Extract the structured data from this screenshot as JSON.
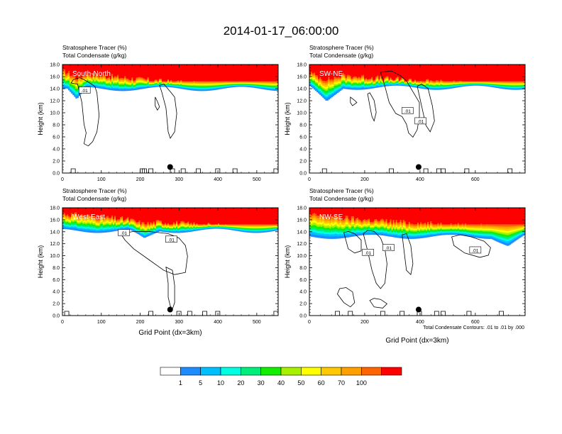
{
  "figure": {
    "title": "2014-01-17_06:00:00",
    "footnote": "Total Condensate Contours: .01 to .01 by .000"
  },
  "colors": {
    "tracer_bins": [
      "#ffffff",
      "#1e8cff",
      "#00bfff",
      "#00ffe0",
      "#00ee7a",
      "#11ee00",
      "#a6f000",
      "#ffff00",
      "#ffc800",
      "#ffa000",
      "#ff6400",
      "#ff0000"
    ],
    "contour": "#000000",
    "axis": "#000000"
  },
  "chart_data": [
    {
      "type": "heatmap",
      "panel": "South-North",
      "variable_labels": [
        "Stratosphere Tracer   (%)",
        "Total Condensate   (g/kg)"
      ],
      "ylabel": "Height (km)",
      "xlabel": "",
      "x_ticks": [
        0,
        100,
        200,
        300,
        400,
        500
      ],
      "x_range": [
        0,
        555
      ],
      "y_ticks": [
        "0.0",
        "2.0",
        "4.0",
        "6.0",
        "8.0",
        "10.0",
        "12.0",
        "14.0",
        "16.0",
        "18.0"
      ],
      "y_range": [
        0,
        18
      ],
      "tracer_top_km": [
        16.8,
        15.9,
        15.1,
        14.5,
        14.2
      ],
      "tracer_base_km": 14.0,
      "tracer_dip": {
        "x": 35,
        "width": 25,
        "depth_km": 2.0
      },
      "contour_labels": [
        {
          "text": ".01",
          "x": 57,
          "y_km": 13.7
        }
      ],
      "marker": {
        "x": 277,
        "y_km": 1.0
      }
    },
    {
      "type": "heatmap",
      "panel": "SW-NE",
      "variable_labels": [
        "Stratosphere Tracer   (%)",
        "Total Condensate   (g/kg)"
      ],
      "ylabel": "Height (km)",
      "xlabel": "",
      "x_ticks": [
        0,
        200,
        400,
        600
      ],
      "x_range": [
        0,
        780
      ],
      "y_ticks": [
        "0.0",
        "2.0",
        "4.0",
        "6.0",
        "8.0",
        "10.0",
        "12.0",
        "14.0",
        "16.0",
        "18.0"
      ],
      "y_range": [
        0,
        18
      ],
      "tracer_top_km": [
        16.6,
        15.9,
        15.3,
        14.8,
        14.4
      ],
      "tracer_base_km": 14.2,
      "tracer_dip": {
        "x": 60,
        "width": 60,
        "depth_km": 2.5
      },
      "contour_labels": [
        {
          "text": ".01",
          "x": 355,
          "y_km": 10.3
        },
        {
          "text": ".01",
          "x": 402,
          "y_km": 8.6
        }
      ],
      "marker": {
        "x": 395,
        "y_km": 1.0
      }
    },
    {
      "type": "heatmap",
      "panel": "West-East",
      "variable_labels": [
        "Stratosphere Tracer   (%)",
        "Total Condensate   (g/kg)"
      ],
      "ylabel": "Height (km)",
      "xlabel": "Grid Point (dx=3km)",
      "x_ticks": [
        0,
        100,
        200,
        300,
        400,
        500
      ],
      "x_range": [
        0,
        555
      ],
      "y_ticks": [
        "0.0",
        "2.0",
        "4.0",
        "6.0",
        "8.0",
        "10.0",
        "12.0",
        "14.0",
        "16.0",
        "18.0"
      ],
      "y_range": [
        0,
        18
      ],
      "tracer_top_km": [
        17.0,
        16.2,
        15.5,
        14.9,
        14.6
      ],
      "tracer_base_km": 14.2,
      "tracer_dip": {
        "x": 210,
        "width": 40,
        "depth_km": 1.5
      },
      "contour_labels": [
        {
          "text": ".01",
          "x": 158,
          "y_km": 13.8
        },
        {
          "text": ".01",
          "x": 280,
          "y_km": 12.7
        }
      ],
      "marker": {
        "x": 277,
        "y_km": 1.0
      }
    },
    {
      "type": "heatmap",
      "panel": "NW-SE",
      "variable_labels": [
        "Stratosphere Tracer   (%)",
        "Total Condensate   (g/kg)"
      ],
      "ylabel": "Height (km)",
      "xlabel": "Grid Point (dx=3km)",
      "x_ticks": [
        0,
        200,
        400,
        600
      ],
      "x_range": [
        0,
        780
      ],
      "y_ticks": [
        "0.0",
        "2.0",
        "4.0",
        "6.0",
        "8.0",
        "10.0",
        "12.0",
        "14.0",
        "16.0",
        "18.0"
      ],
      "y_range": [
        0,
        18
      ],
      "tracer_top_km": [
        16.8,
        16.0,
        15.4,
        15.0,
        14.6
      ],
      "tracer_base_km": 13.2,
      "tracer_dip": {
        "x": 720,
        "width": 60,
        "depth_km": 1.5
      },
      "contour_labels": [
        {
          "text": ".01",
          "x": 212,
          "y_km": 10.5
        },
        {
          "text": ".01",
          "x": 286,
          "y_km": 11.3
        },
        {
          "text": ".01",
          "x": 600,
          "y_km": 10.9
        }
      ],
      "marker": {
        "x": 395,
        "y_km": 1.0
      }
    }
  ],
  "colorbar": {
    "type": "legend",
    "labels": [
      "1",
      "5",
      "10",
      "20",
      "30",
      "40",
      "50",
      "60",
      "70",
      "100"
    ]
  }
}
